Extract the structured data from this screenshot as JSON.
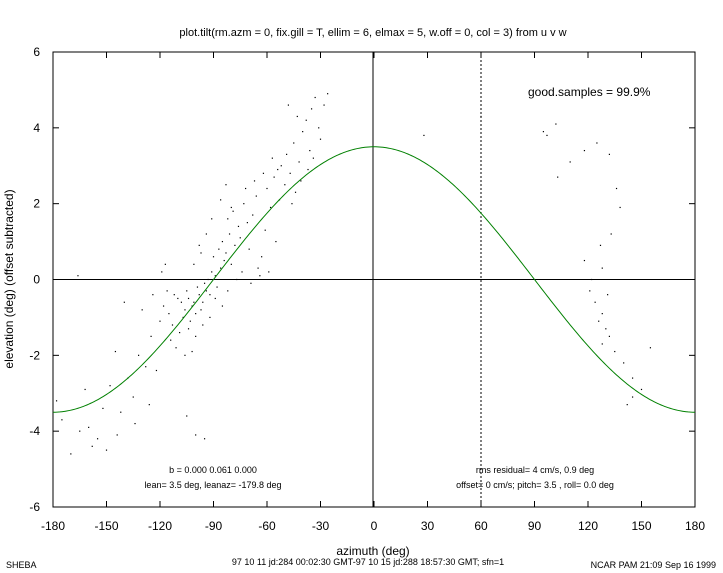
{
  "chart_data": {
    "type": "scatter",
    "title": "plot.tilt(rm.azm = 0, fix.gill = T, ellim = 6, elmax = 5, w.off = 0, col = 3) from u v w",
    "xlabel": "azimuth (deg)",
    "ylabel": "elevation (deg)  (offset subtracted)",
    "xlim": [
      -180,
      180
    ],
    "ylim": [
      -6,
      6
    ],
    "xticks": [
      -180,
      -150,
      -120,
      -90,
      -60,
      -30,
      0,
      30,
      60,
      90,
      120,
      150,
      180
    ],
    "yticks": [
      -6,
      -4,
      -2,
      0,
      2,
      4,
      6
    ],
    "x_tick_labels": [
      "-180",
      "-150",
      "-120",
      "-90",
      "-60",
      "-30",
      "0",
      "30",
      "60",
      "90",
      "120",
      "150",
      "180"
    ],
    "y_tick_labels": [
      "-6",
      "-4",
      "-2",
      "0",
      "2",
      "4",
      "6"
    ],
    "reference_lines": {
      "horizontal_y": 0,
      "vertical_solid_x": 0,
      "vertical_dotted_x": 60
    },
    "fit_curve": {
      "form": "amplitude*cos(azimuth - phase)",
      "amplitude": 3.5,
      "phase_deg": 0,
      "color": "#008000"
    },
    "point_color": "#000000",
    "grid": false,
    "legend": "none",
    "series": [
      {
        "points": [
          [
            -108,
            -0.6
          ],
          [
            -106,
            -0.8
          ],
          [
            -104,
            -0.5
          ],
          [
            -102,
            -0.7
          ],
          [
            -100,
            -0.9
          ],
          [
            -98,
            -0.4
          ],
          [
            -96,
            -0.6
          ],
          [
            -94,
            -0.3
          ],
          [
            -110,
            -0.5
          ],
          [
            -112,
            -0.4
          ],
          [
            -107,
            -1.0
          ],
          [
            -103,
            -1.1
          ],
          [
            -99,
            -0.2
          ],
          [
            -105,
            -0.3
          ],
          [
            -101,
            -0.6
          ],
          [
            -97,
            -0.8
          ],
          [
            -95,
            -0.1
          ],
          [
            -93,
            0.0
          ],
          [
            -91,
            0.2
          ],
          [
            -89,
            0.1
          ],
          [
            -92,
            -0.4
          ],
          [
            -88,
            -0.2
          ],
          [
            -86,
            0.3
          ],
          [
            -84,
            0.5
          ],
          [
            -90,
            0.6
          ],
          [
            -87,
            0.8
          ],
          [
            -85,
            1.0
          ],
          [
            -83,
            0.7
          ],
          [
            -81,
            1.2
          ],
          [
            -80,
            0.4
          ],
          [
            -78,
            0.9
          ],
          [
            -76,
            1.4
          ],
          [
            -82,
            1.6
          ],
          [
            -79,
            1.8
          ],
          [
            -75,
            1.1
          ],
          [
            -73,
            2.0
          ],
          [
            -71,
            1.5
          ],
          [
            -70,
            0.8
          ],
          [
            -68,
            1.7
          ],
          [
            -66,
            2.2
          ],
          [
            -65,
            0.3
          ],
          [
            -63,
            0.6
          ],
          [
            -61,
            1.3
          ],
          [
            -60,
            2.4
          ],
          [
            -58,
            1.9
          ],
          [
            -56,
            2.7
          ],
          [
            -55,
            1.0
          ],
          [
            -53,
            2.1
          ],
          [
            -52,
            3.0
          ],
          [
            -50,
            2.5
          ],
          [
            -49,
            3.3
          ],
          [
            -47,
            2.8
          ],
          [
            -45,
            3.6
          ],
          [
            -44,
            2.3
          ],
          [
            -42,
            3.1
          ],
          [
            -40,
            3.9
          ],
          [
            -38,
            4.2
          ],
          [
            -36,
            3.4
          ],
          [
            -35,
            4.5
          ],
          [
            -33,
            4.8
          ],
          [
            -31,
            4.0
          ],
          [
            -30,
            3.7
          ],
          [
            -28,
            4.6
          ],
          [
            -26,
            4.9
          ],
          [
            -48,
            4.6
          ],
          [
            -43,
            4.3
          ],
          [
            -37,
            2.9
          ],
          [
            -34,
            3.2
          ],
          [
            -46,
            2.0
          ],
          [
            -41,
            2.6
          ],
          [
            -54,
            2.9
          ],
          [
            -57,
            3.2
          ],
          [
            -62,
            2.8
          ],
          [
            -67,
            2.6
          ],
          [
            -72,
            2.4
          ],
          [
            -74,
            0.2
          ],
          [
            -77,
            0.0
          ],
          [
            -69,
            -0.1
          ],
          [
            -64,
            0.1
          ],
          [
            -59,
            0.2
          ],
          [
            -115,
            -0.9
          ],
          [
            -118,
            -0.7
          ],
          [
            -113,
            -1.2
          ],
          [
            -109,
            -1.4
          ],
          [
            -116,
            -0.3
          ],
          [
            -120,
            -1.1
          ],
          [
            -114,
            -1.6
          ],
          [
            -111,
            -1.8
          ],
          [
            -104,
            -1.3
          ],
          [
            -100,
            -1.5
          ],
          [
            -96,
            -1.2
          ],
          [
            -92,
            -1.0
          ],
          [
            -106,
            -2.0
          ],
          [
            -102,
            -1.9
          ],
          [
            -125,
            -1.5
          ],
          [
            -128,
            -2.3
          ],
          [
            -132,
            -2.0
          ],
          [
            -135,
            -3.1
          ],
          [
            -138,
            -2.6
          ],
          [
            -142,
            -3.5
          ],
          [
            -145,
            -1.9
          ],
          [
            -148,
            -2.8
          ],
          [
            -152,
            -3.4
          ],
          [
            -155,
            -4.2
          ],
          [
            -160,
            -3.9
          ],
          [
            -165,
            -4.0
          ],
          [
            -170,
            -4.6
          ],
          [
            -175,
            -3.7
          ],
          [
            -178,
            -3.2
          ],
          [
            -166,
            0.1
          ],
          [
            -140,
            -0.6
          ],
          [
            -130,
            -0.8
          ],
          [
            -124,
            -0.4
          ],
          [
            -119,
            0.2
          ],
          [
            -117,
            0.4
          ],
          [
            -122,
            -2.4
          ],
          [
            -126,
            -3.3
          ],
          [
            -134,
            -3.8
          ],
          [
            -144,
            -4.1
          ],
          [
            -150,
            -4.5
          ],
          [
            -158,
            -4.4
          ],
          [
            -162,
            -2.9
          ],
          [
            -100,
            -4.1
          ],
          [
            -95,
            -4.2
          ],
          [
            -105,
            -3.6
          ],
          [
            -98,
            0.9
          ],
          [
            -94,
            1.2
          ],
          [
            -91,
            1.6
          ],
          [
            -86,
            2.1
          ],
          [
            -83,
            2.5
          ],
          [
            -80,
            1.9
          ],
          [
            -101,
            0.4
          ],
          [
            -97,
            0.7
          ],
          [
            -89,
            -0.5
          ],
          [
            -85,
            -0.7
          ],
          [
            -82,
            -0.3
          ],
          [
            28,
            3.8
          ],
          [
            60,
            4.3
          ],
          [
            95,
            3.9
          ],
          [
            102,
            4.1
          ],
          [
            97,
            3.8
          ],
          [
            103,
            2.7
          ],
          [
            110,
            3.1
          ],
          [
            118,
            3.4
          ],
          [
            125,
            3.6
          ],
          [
            132,
            3.3
          ],
          [
            136,
            2.4
          ],
          [
            138,
            1.9
          ],
          [
            133,
            1.2
          ],
          [
            127,
            0.9
          ],
          [
            118,
            0.5
          ],
          [
            121,
            -0.3
          ],
          [
            124,
            -0.6
          ],
          [
            128,
            -0.9
          ],
          [
            131,
            -0.4
          ],
          [
            126,
            -1.1
          ],
          [
            130,
            -1.3
          ],
          [
            132,
            -1.5
          ],
          [
            128,
            -1.7
          ],
          [
            135,
            -1.9
          ],
          [
            140,
            -2.2
          ],
          [
            145,
            -2.6
          ],
          [
            150,
            -2.9
          ],
          [
            145,
            -3.1
          ],
          [
            142,
            -3.3
          ],
          [
            155,
            -1.8
          ],
          [
            122,
            0.0
          ],
          [
            128,
            0.3
          ]
        ]
      }
    ]
  },
  "annotations": {
    "good_samples": "good.samples = 99.9%",
    "b_line": "b = 0.000 0.061 0.000",
    "lean_line": "lean= 3.5 deg, leanaz= -179.8 deg",
    "rms_line": "rms residual= 4 cm/s, 0.9 deg",
    "offset_line": "offset= 0 cm/s; pitch=  3.5 , roll=  0.0 deg"
  },
  "footer": {
    "left": "SHEBA",
    "center": "97 10 11 jd:284 00:02:30 GMT-97 10 15 jd:288 18:57:30 GMT; sfn=1",
    "right": "NCAR PAM 21:09 Sep 16 1999"
  }
}
